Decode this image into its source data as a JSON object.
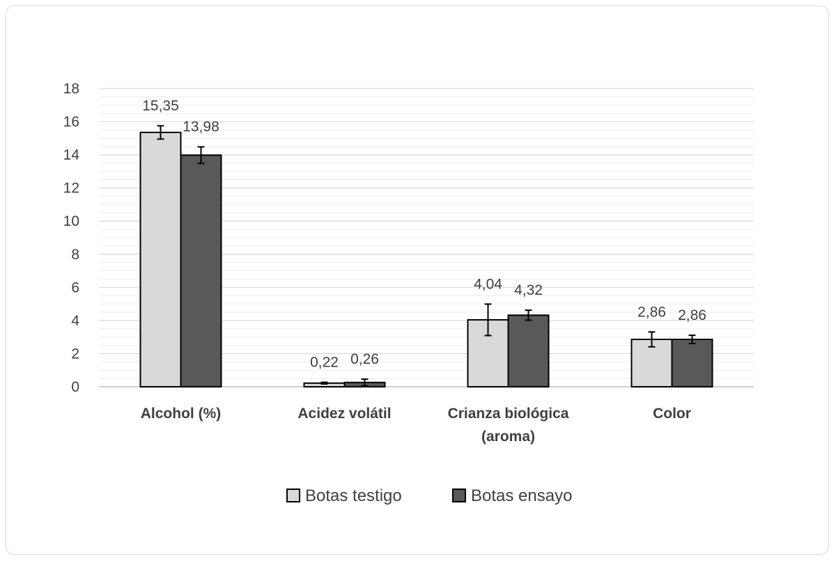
{
  "chart_data": {
    "type": "bar",
    "title": "",
    "xlabel": "",
    "ylabel": "",
    "ylim": [
      0,
      18
    ],
    "yticks": [
      0,
      2,
      4,
      6,
      8,
      10,
      12,
      14,
      16,
      18
    ],
    "grid": true,
    "legend_position": "bottom",
    "categories": [
      [
        "Alcohol (%)"
      ],
      [
        "Acidez volátil"
      ],
      [
        "Crianza biológica",
        "(aroma)"
      ],
      [
        "Color"
      ]
    ],
    "series": [
      {
        "name": "Botas testigo",
        "color": "#d9d9d9",
        "values": [
          15.35,
          0.22,
          4.04,
          2.86
        ],
        "labels": [
          "15,35",
          "0,22",
          "4,04",
          "2,86"
        ],
        "error": [
          0.4,
          0.05,
          0.95,
          0.45
        ]
      },
      {
        "name": "Botas ensayo",
        "color": "#595959",
        "values": [
          13.98,
          0.26,
          4.32,
          2.86
        ],
        "labels": [
          "13,98",
          "0,26",
          "4,32",
          "2,86"
        ],
        "error": [
          0.5,
          0.2,
          0.3,
          0.25
        ]
      }
    ]
  }
}
